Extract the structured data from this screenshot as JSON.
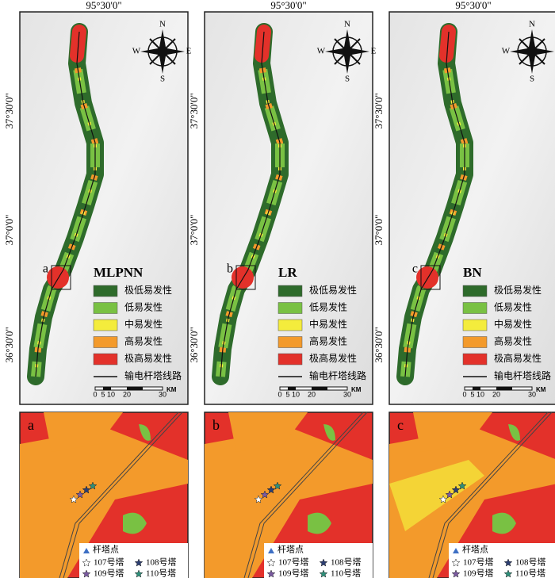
{
  "coordinates": {
    "longitude": "95°30'0\"",
    "latitudes": [
      "37°30'0\"",
      "37°0'0\"",
      "36°30'0\""
    ]
  },
  "compass": {
    "north": "N",
    "east": "E",
    "south": "S",
    "west": "W"
  },
  "panels": [
    {
      "model": "MLPNN",
      "inset": "a"
    },
    {
      "model": "LR",
      "inset": "b"
    },
    {
      "model": "BN",
      "inset": "c"
    }
  ],
  "legend": {
    "classes": [
      "极低易发性",
      "低易发性",
      "中易发性",
      "高易发性",
      "极高易发性"
    ],
    "line": "输电杆塔线路"
  },
  "scale_bar": {
    "ticks": [
      "0",
      "5",
      "10",
      "20",
      "30"
    ],
    "unit": "KM"
  },
  "inset_legend": {
    "point": "杆塔点",
    "towers": [
      "107号塔",
      "108号塔",
      "109号塔",
      "110号塔"
    ]
  }
}
